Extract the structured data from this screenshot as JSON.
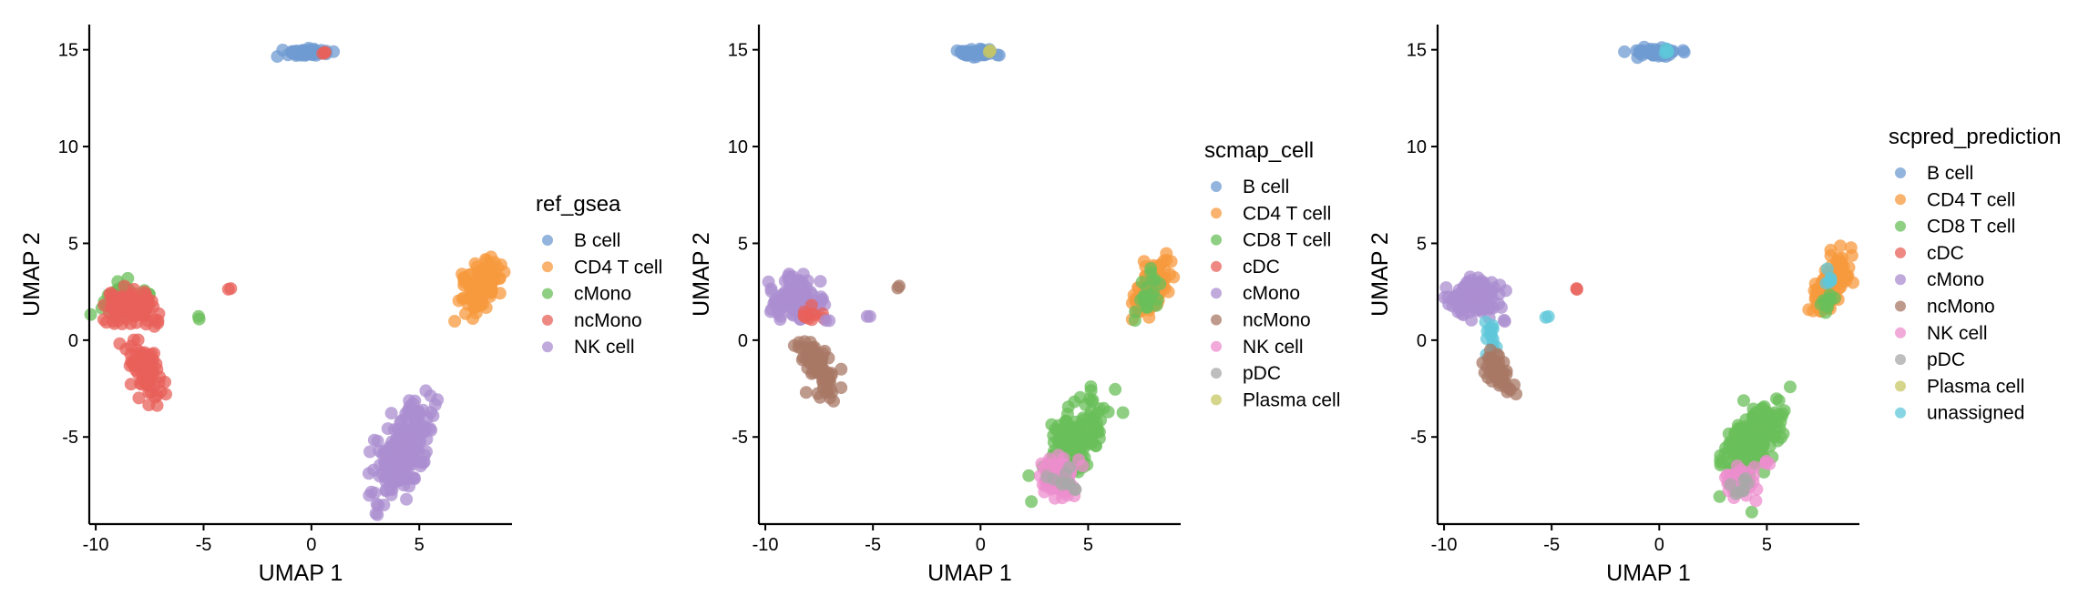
{
  "chart_data": [
    {
      "type": "scatter",
      "xlabel": "UMAP 1",
      "ylabel": "UMAP 2",
      "xlim": [
        -10.3,
        9.3
      ],
      "ylim": [
        -9.5,
        16.3
      ],
      "xticks": [
        -10,
        -5,
        0,
        5
      ],
      "yticks": [
        -5,
        0,
        5,
        10,
        15
      ],
      "grid": false,
      "legend": {
        "title": "ref_gsea",
        "position": "right",
        "entries": [
          {
            "label": "B cell",
            "color": "#6f9bd1"
          },
          {
            "label": "CD4 T cell",
            "color": "#f79a3e"
          },
          {
            "label": "cMono",
            "color": "#6abf5a"
          },
          {
            "label": "ncMono",
            "color": "#e8605a"
          },
          {
            "label": "NK cell",
            "color": "#ab8dd0"
          }
        ]
      },
      "clusters": [
        {
          "label": "B cell",
          "cx": -0.2,
          "cy": 14.85,
          "sx": 0.5,
          "sy": 0.1,
          "n": 60
        },
        {
          "label": "ncMono",
          "cx": 0.6,
          "cy": 14.85,
          "sx": 0.1,
          "sy": 0.06,
          "n": 3
        },
        {
          "label": "CD4 T cell",
          "cx": 7.9,
          "cy": 2.8,
          "sx": 0.35,
          "sy": 0.7,
          "n": 120,
          "tilt": 0.5
        },
        {
          "label": "cMono",
          "cx": -8.8,
          "cy": 2.2,
          "sx": 0.5,
          "sy": 0.45,
          "n": 55
        },
        {
          "label": "ncMono",
          "cx": -8.4,
          "cy": 1.7,
          "sx": 0.6,
          "sy": 0.5,
          "n": 90
        },
        {
          "label": "ncMono",
          "cx": -7.7,
          "cy": -1.6,
          "sx": 0.35,
          "sy": 0.75,
          "n": 75,
          "tilt": -0.6
        },
        {
          "label": "ncMono",
          "cx": -7.2,
          "cy": 0.9,
          "sx": 0.12,
          "sy": 0.12,
          "n": 3
        },
        {
          "label": "cMono",
          "cx": -5.2,
          "cy": 1.2,
          "sx": 0.05,
          "sy": 0.05,
          "n": 2
        },
        {
          "label": "ncMono",
          "cx": -3.8,
          "cy": 2.7,
          "sx": 0.05,
          "sy": 0.05,
          "n": 2
        },
        {
          "label": "NK cell",
          "cx": 4.2,
          "cy": -5.8,
          "sx": 0.5,
          "sy": 1.25,
          "n": 240,
          "tilt": 0.5
        },
        {
          "label": "NK cell",
          "cx": 5.2,
          "cy": -6.4,
          "sx": 0.1,
          "sy": 0.1,
          "n": 3
        }
      ]
    },
    {
      "type": "scatter",
      "xlabel": "UMAP 1",
      "ylabel": "UMAP 2",
      "xlim": [
        -10.3,
        9.3
      ],
      "ylim": [
        -9.5,
        16.3
      ],
      "xticks": [
        -10,
        -5,
        0,
        5
      ],
      "yticks": [
        -5,
        0,
        5,
        10,
        15
      ],
      "grid": false,
      "legend": {
        "title": "scmap_cell",
        "position": "right",
        "entries": [
          {
            "label": "B cell",
            "color": "#6f9bd1"
          },
          {
            "label": "CD4 T cell",
            "color": "#f79a3e"
          },
          {
            "label": "CD8 T cell",
            "color": "#6abf5a"
          },
          {
            "label": "cDC",
            "color": "#e8605a"
          },
          {
            "label": "cMono",
            "color": "#ab8dd0"
          },
          {
            "label": "ncMono",
            "color": "#a87865"
          },
          {
            "label": "NK cell",
            "color": "#ec8dcd"
          },
          {
            "label": "pDC",
            "color": "#a8a8a8"
          },
          {
            "label": "Plasma cell",
            "color": "#c7c764"
          }
        ]
      },
      "clusters": [
        {
          "label": "B cell",
          "cx": -0.2,
          "cy": 14.85,
          "sx": 0.5,
          "sy": 0.1,
          "n": 60
        },
        {
          "label": "Plasma cell",
          "cx": 0.5,
          "cy": 14.9,
          "sx": 0.08,
          "sy": 0.05,
          "n": 2
        },
        {
          "label": "CD4 T cell",
          "cx": 7.9,
          "cy": 2.8,
          "sx": 0.35,
          "sy": 0.7,
          "n": 110,
          "tilt": 0.5
        },
        {
          "label": "CD8 T cell",
          "cx": 7.8,
          "cy": 2.4,
          "sx": 0.3,
          "sy": 0.6,
          "n": 25,
          "tilt": 0.5
        },
        {
          "label": "cMono",
          "cx": -8.6,
          "cy": 2.2,
          "sx": 0.6,
          "sy": 0.5,
          "n": 120
        },
        {
          "label": "cDC",
          "cx": -7.9,
          "cy": 1.3,
          "sx": 0.35,
          "sy": 0.3,
          "n": 10
        },
        {
          "label": "ncMono",
          "cx": -7.6,
          "cy": -1.5,
          "sx": 0.35,
          "sy": 0.75,
          "n": 75,
          "tilt": -0.6
        },
        {
          "label": "cMono",
          "cx": -7.2,
          "cy": 1.0,
          "sx": 0.1,
          "sy": 0.1,
          "n": 2
        },
        {
          "label": "cMono",
          "cx": -5.2,
          "cy": 1.2,
          "sx": 0.05,
          "sy": 0.05,
          "n": 2
        },
        {
          "label": "ncMono",
          "cx": -3.8,
          "cy": 2.7,
          "sx": 0.05,
          "sy": 0.05,
          "n": 2
        },
        {
          "label": "CD8 T cell",
          "cx": 4.4,
          "cy": -5.2,
          "sx": 0.55,
          "sy": 1.1,
          "n": 170,
          "tilt": 0.5
        },
        {
          "label": "NK cell",
          "cx": 3.7,
          "cy": -7.1,
          "sx": 0.35,
          "sy": 0.5,
          "n": 70
        },
        {
          "label": "pDC",
          "cx": 3.8,
          "cy": -7.4,
          "sx": 0.3,
          "sy": 0.4,
          "n": 10
        }
      ]
    },
    {
      "type": "scatter",
      "xlabel": "UMAP 1",
      "ylabel": "UMAP 2",
      "xlim": [
        -10.3,
        9.3
      ],
      "ylim": [
        -9.5,
        16.3
      ],
      "xticks": [
        -10,
        -5,
        0,
        5
      ],
      "yticks": [
        -5,
        0,
        5,
        10,
        15
      ],
      "grid": false,
      "legend": {
        "title": "scpred_prediction",
        "position": "right",
        "entries": [
          {
            "label": "B cell",
            "color": "#6f9bd1"
          },
          {
            "label": "CD4 T cell",
            "color": "#f79a3e"
          },
          {
            "label": "CD8 T cell",
            "color": "#6abf5a"
          },
          {
            "label": "cDC",
            "color": "#e8605a"
          },
          {
            "label": "cMono",
            "color": "#ab8dd0"
          },
          {
            "label": "ncMono",
            "color": "#a87865"
          },
          {
            "label": "NK cell",
            "color": "#ec8dcd"
          },
          {
            "label": "pDC",
            "color": "#a8a8a8"
          },
          {
            "label": "Plasma cell",
            "color": "#c7c764"
          },
          {
            "label": "unassigned",
            "color": "#5fc7d9"
          }
        ]
      },
      "clusters": [
        {
          "label": "B cell",
          "cx": -0.2,
          "cy": 14.85,
          "sx": 0.5,
          "sy": 0.1,
          "n": 60
        },
        {
          "label": "unassigned",
          "cx": 0.3,
          "cy": 14.85,
          "sx": 0.2,
          "sy": 0.08,
          "n": 4
        },
        {
          "label": "CD4 T cell",
          "cx": 7.9,
          "cy": 2.8,
          "sx": 0.35,
          "sy": 0.7,
          "n": 110,
          "tilt": 0.5
        },
        {
          "label": "CD8 T cell",
          "cx": 7.7,
          "cy": 2.0,
          "sx": 0.3,
          "sy": 0.4,
          "n": 12
        },
        {
          "label": "unassigned",
          "cx": 7.9,
          "cy": 3.2,
          "sx": 0.2,
          "sy": 0.4,
          "n": 6
        },
        {
          "label": "cMono",
          "cx": -8.6,
          "cy": 2.2,
          "sx": 0.6,
          "sy": 0.5,
          "n": 120
        },
        {
          "label": "unassigned",
          "cx": -7.9,
          "cy": 0.3,
          "sx": 0.25,
          "sy": 0.5,
          "n": 14
        },
        {
          "label": "ncMono",
          "cx": -7.4,
          "cy": -1.8,
          "sx": 0.3,
          "sy": 0.6,
          "n": 60,
          "tilt": -0.6
        },
        {
          "label": "cMono",
          "cx": -7.2,
          "cy": 1.0,
          "sx": 0.1,
          "sy": 0.1,
          "n": 2
        },
        {
          "label": "unassigned",
          "cx": -5.2,
          "cy": 1.2,
          "sx": 0.05,
          "sy": 0.05,
          "n": 2
        },
        {
          "label": "cDC",
          "cx": -3.8,
          "cy": 2.7,
          "sx": 0.05,
          "sy": 0.05,
          "n": 2
        },
        {
          "label": "CD8 T cell",
          "cx": 4.4,
          "cy": -5.3,
          "sx": 0.55,
          "sy": 1.1,
          "n": 190,
          "tilt": 0.5
        },
        {
          "label": "NK cell",
          "cx": 3.8,
          "cy": -7.3,
          "sx": 0.35,
          "sy": 0.4,
          "n": 45
        },
        {
          "label": "NK cell",
          "cx": 5.0,
          "cy": -6.4,
          "sx": 0.1,
          "sy": 0.1,
          "n": 4
        },
        {
          "label": "pDC",
          "cx": 3.7,
          "cy": -7.7,
          "sx": 0.3,
          "sy": 0.35,
          "n": 8
        }
      ]
    }
  ]
}
